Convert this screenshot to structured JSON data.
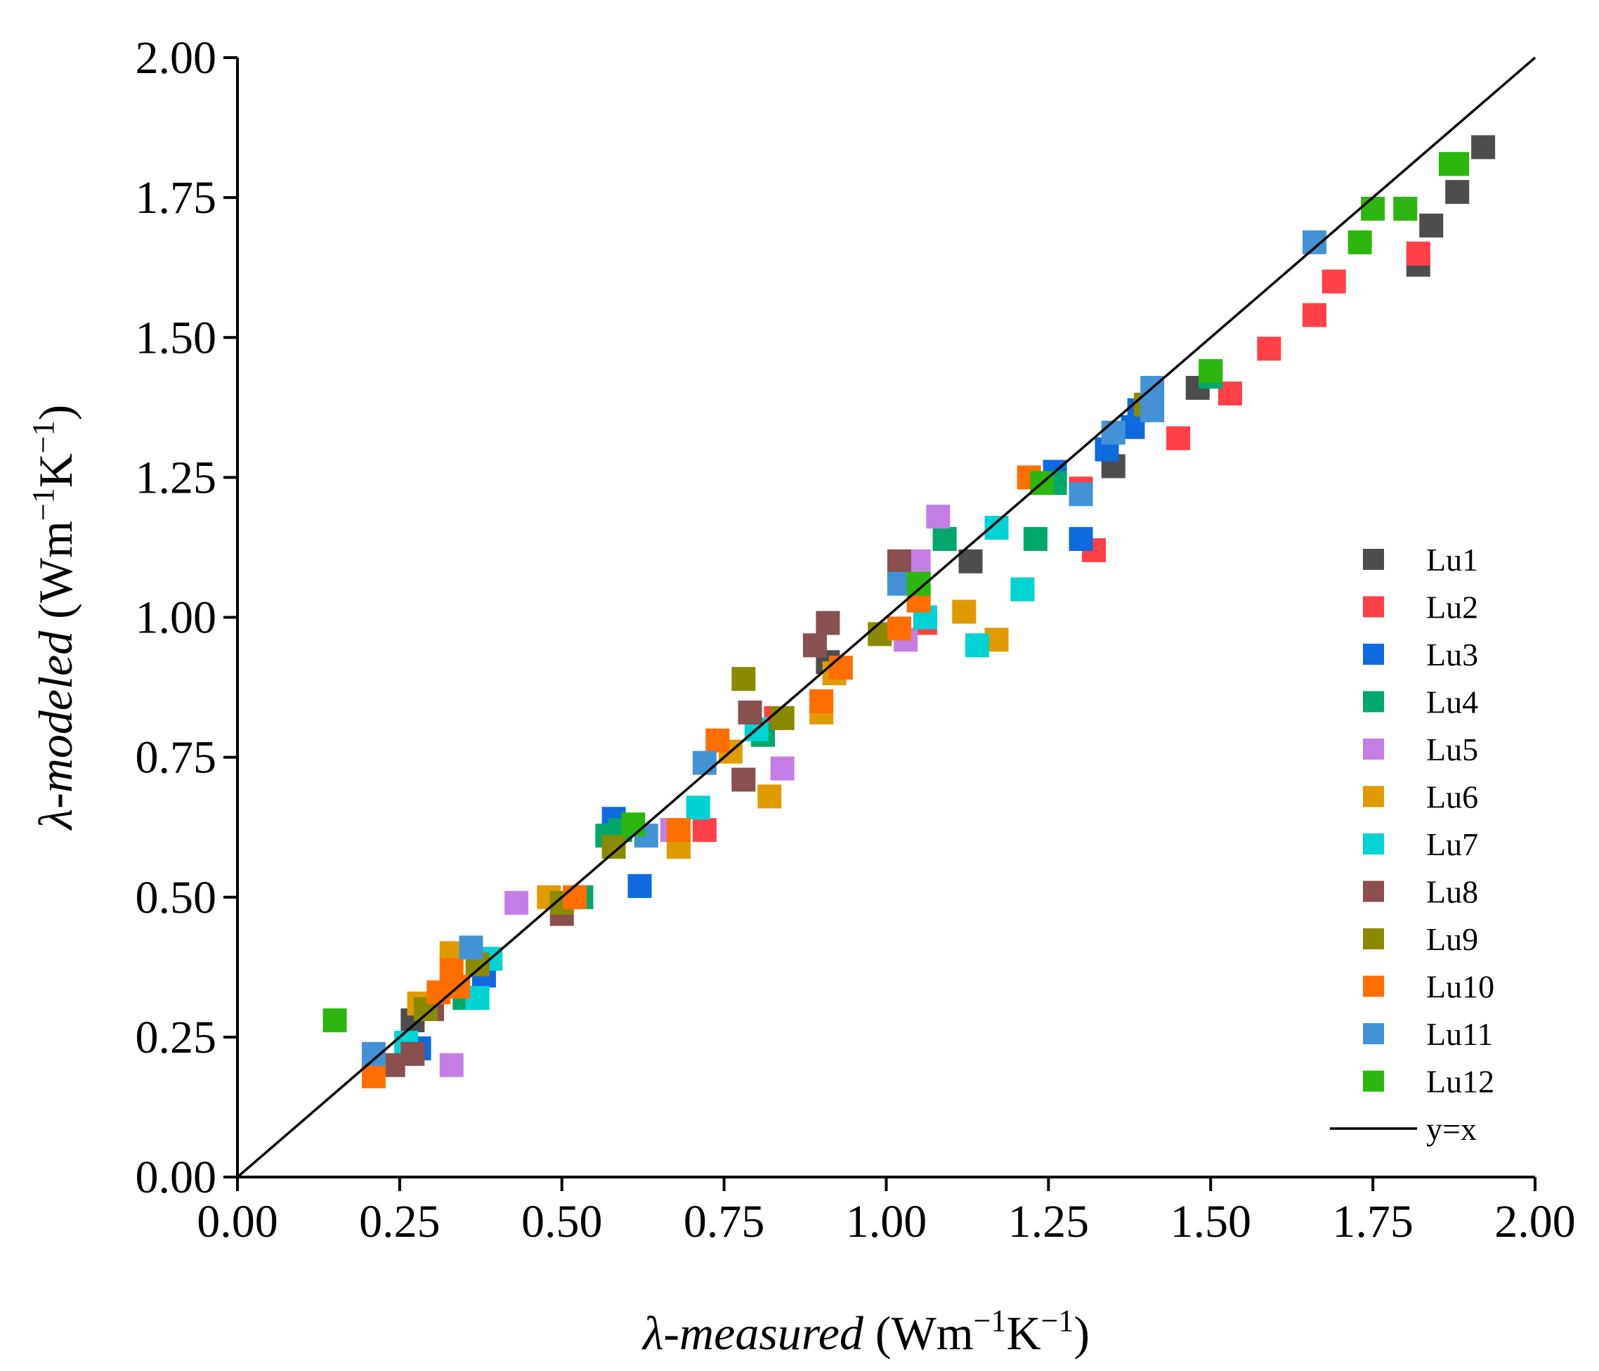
{
  "chart_data": {
    "type": "scatter",
    "title": "",
    "xlabel": {
      "symbol": "λ",
      "name": "-measured",
      "unit": " (Wm",
      "exp1": "−1",
      "unit2": "K",
      "exp2": "−1",
      "close": ")"
    },
    "ylabel": {
      "symbol": "λ",
      "name": "-modeled",
      "unit": " (Wm",
      "exp1": "−1",
      "unit2": "K",
      "exp2": "−1",
      "close": ")"
    },
    "xlim": [
      0,
      2
    ],
    "ylim": [
      0,
      2
    ],
    "x_ticks": [
      "0.00",
      "0.25",
      "0.50",
      "0.75",
      "1.00",
      "1.25",
      "1.50",
      "1.75",
      "2.00"
    ],
    "y_ticks": [
      "0.00",
      "0.25",
      "0.50",
      "0.75",
      "1.00",
      "1.25",
      "1.50",
      "1.75",
      "2.00"
    ],
    "legend_position": "bottom-right",
    "reference_line": {
      "name": "y=x",
      "color": "#000000",
      "points": [
        [
          0,
          0
        ],
        [
          2,
          2
        ]
      ]
    },
    "series": [
      {
        "name": "Lu1",
        "color": "#4d4d4d",
        "points": [
          [
            0.27,
            0.28
          ],
          [
            0.91,
            0.92
          ],
          [
            1.13,
            1.1
          ],
          [
            1.35,
            1.27
          ],
          [
            1.48,
            1.41
          ],
          [
            1.82,
            1.63
          ],
          [
            1.84,
            1.7
          ],
          [
            1.88,
            1.76
          ],
          [
            1.92,
            1.84
          ]
        ]
      },
      {
        "name": "Lu2",
        "color": "#ff4046",
        "points": [
          [
            0.72,
            0.62
          ],
          [
            0.83,
            0.82
          ],
          [
            1.06,
            0.99
          ],
          [
            1.3,
            1.23
          ],
          [
            1.32,
            1.12
          ],
          [
            1.45,
            1.32
          ],
          [
            1.53,
            1.4
          ],
          [
            1.59,
            1.48
          ],
          [
            1.66,
            1.54
          ],
          [
            1.69,
            1.6
          ],
          [
            1.82,
            1.65
          ]
        ]
      },
      {
        "name": "Lu3",
        "color": "#0f6ade",
        "points": [
          [
            0.28,
            0.23
          ],
          [
            0.38,
            0.36
          ],
          [
            0.58,
            0.64
          ],
          [
            0.62,
            0.52
          ],
          [
            1.02,
            0.98
          ],
          [
            1.26,
            1.26
          ],
          [
            1.3,
            1.14
          ],
          [
            1.34,
            1.3
          ],
          [
            1.38,
            1.34
          ],
          [
            1.39,
            1.37
          ]
        ]
      },
      {
        "name": "Lu4",
        "color": "#00a86b",
        "points": [
          [
            0.35,
            0.32
          ],
          [
            0.53,
            0.5
          ],
          [
            0.57,
            0.61
          ],
          [
            0.59,
            0.62
          ],
          [
            0.81,
            0.79
          ],
          [
            1.09,
            1.14
          ],
          [
            1.23,
            1.14
          ],
          [
            1.26,
            1.24
          ],
          [
            1.5,
            1.43
          ]
        ]
      },
      {
        "name": "Lu5",
        "color": "#c47ee6",
        "points": [
          [
            0.33,
            0.2
          ],
          [
            0.43,
            0.49
          ],
          [
            0.67,
            0.62
          ],
          [
            0.84,
            0.73
          ],
          [
            1.03,
            0.96
          ],
          [
            1.05,
            1.1
          ],
          [
            1.08,
            1.18
          ]
        ]
      },
      {
        "name": "Lu6",
        "color": "#e09b00",
        "points": [
          [
            0.28,
            0.31
          ],
          [
            0.33,
            0.4
          ],
          [
            0.48,
            0.5
          ],
          [
            0.68,
            0.59
          ],
          [
            0.76,
            0.76
          ],
          [
            0.82,
            0.68
          ],
          [
            0.9,
            0.83
          ],
          [
            0.92,
            0.9
          ],
          [
            1.12,
            1.01
          ],
          [
            1.17,
            0.96
          ]
        ]
      },
      {
        "name": "Lu7",
        "color": "#00d3d3",
        "points": [
          [
            0.26,
            0.24
          ],
          [
            0.37,
            0.32
          ],
          [
            0.39,
            0.39
          ],
          [
            0.71,
            0.66
          ],
          [
            0.8,
            0.8
          ],
          [
            1.06,
            1.0
          ],
          [
            1.14,
            0.95
          ],
          [
            1.17,
            1.16
          ],
          [
            1.21,
            1.05
          ]
        ]
      },
      {
        "name": "Lu8",
        "color": "#8a4f4f",
        "points": [
          [
            0.24,
            0.2
          ],
          [
            0.27,
            0.22
          ],
          [
            0.3,
            0.3
          ],
          [
            0.5,
            0.47
          ],
          [
            0.78,
            0.71
          ],
          [
            0.79,
            0.83
          ],
          [
            0.89,
            0.95
          ],
          [
            0.91,
            0.99
          ],
          [
            1.02,
            1.1
          ]
        ]
      },
      {
        "name": "Lu9",
        "color": "#8a8a00",
        "points": [
          [
            0.29,
            0.3
          ],
          [
            0.37,
            0.38
          ],
          [
            0.5,
            0.49
          ],
          [
            0.58,
            0.59
          ],
          [
            0.78,
            0.89
          ],
          [
            0.84,
            0.82
          ],
          [
            0.99,
            0.97
          ],
          [
            1.4,
            1.38
          ]
        ]
      },
      {
        "name": "Lu10",
        "color": "#ff6e00",
        "points": [
          [
            0.21,
            0.18
          ],
          [
            0.31,
            0.33
          ],
          [
            0.33,
            0.37
          ],
          [
            0.34,
            0.34
          ],
          [
            0.52,
            0.5
          ],
          [
            0.68,
            0.62
          ],
          [
            0.74,
            0.78
          ],
          [
            0.9,
            0.85
          ],
          [
            0.93,
            0.91
          ],
          [
            1.02,
            0.98
          ],
          [
            1.05,
            1.03
          ],
          [
            1.22,
            1.25
          ]
        ]
      },
      {
        "name": "Lu11",
        "color": "#4393d4",
        "points": [
          [
            0.21,
            0.22
          ],
          [
            0.36,
            0.41
          ],
          [
            0.63,
            0.61
          ],
          [
            0.72,
            0.74
          ],
          [
            1.02,
            1.06
          ],
          [
            1.3,
            1.22
          ],
          [
            1.35,
            1.33
          ],
          [
            1.41,
            1.37
          ],
          [
            1.41,
            1.41
          ],
          [
            1.66,
            1.67
          ]
        ]
      },
      {
        "name": "Lu12",
        "color": "#2db60f",
        "points": [
          [
            0.15,
            0.28
          ],
          [
            0.61,
            0.63
          ],
          [
            1.05,
            1.06
          ],
          [
            1.24,
            1.24
          ],
          [
            1.5,
            1.44
          ],
          [
            1.73,
            1.67
          ],
          [
            1.75,
            1.73
          ],
          [
            1.8,
            1.73
          ],
          [
            1.87,
            1.81
          ],
          [
            1.88,
            1.81
          ]
        ]
      }
    ]
  }
}
